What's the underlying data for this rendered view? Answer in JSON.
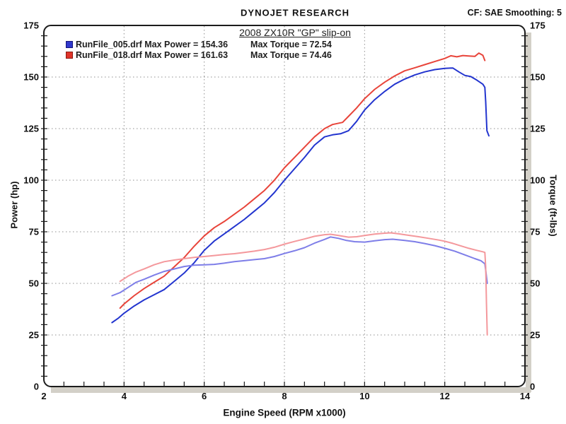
{
  "header": {
    "brand": "DYNOJET RESEARCH",
    "settings": "CF: SAE  Smoothing: 5"
  },
  "title": "2008 ZX10R \"GP\" slip-on",
  "legend": [
    {
      "label": "RunFile_005.drf Max Power = 154.36",
      "torque": "Max Torque = 72.54",
      "swatch": "#3038cc",
      "swatch_border": "#15157a"
    },
    {
      "label": "RunFile_018.drf Max Power = 161.63",
      "torque": "Max Torque = 74.46",
      "swatch": "#e0342a",
      "swatch_border": "#8a1a10"
    }
  ],
  "axes": {
    "left_label": "Power (hp)",
    "right_label": "Torque (ft-lbs)",
    "bottom_label": "Engine Speed (RPM x1000)"
  },
  "chart_data": {
    "type": "line",
    "title": "2008 ZX10R \"GP\" slip-on",
    "xlabel": "Engine Speed (RPM x1000)",
    "ylabel": "Power (hp)",
    "ylabel_right": "Torque (ft-lbs)",
    "xlim": [
      2,
      14
    ],
    "ylim": [
      0,
      175
    ],
    "x_major_ticks": [
      2,
      4,
      6,
      8,
      10,
      12,
      14
    ],
    "x_minor_step": 0.5,
    "y_major_ticks": [
      0,
      25,
      50,
      75,
      100,
      125,
      150,
      175
    ],
    "y_minor_step": 5,
    "grid_x": [
      4,
      6,
      8,
      10,
      12
    ],
    "grid_y": [
      25,
      50,
      75,
      100,
      125,
      150
    ],
    "legend_position": "top-left",
    "series": [
      {
        "name": "RunFile_005.drf Power",
        "unit": "hp",
        "color": "#2335cf",
        "max": 154.36,
        "points": [
          [
            3.7,
            31
          ],
          [
            3.85,
            33
          ],
          [
            4,
            35.5
          ],
          [
            4.25,
            39
          ],
          [
            4.5,
            42
          ],
          [
            4.75,
            44.5
          ],
          [
            5,
            47
          ],
          [
            5.25,
            51
          ],
          [
            5.5,
            55
          ],
          [
            5.75,
            60
          ],
          [
            6,
            66
          ],
          [
            6.25,
            70.5
          ],
          [
            6.5,
            74
          ],
          [
            6.75,
            77.5
          ],
          [
            7,
            81
          ],
          [
            7.25,
            85
          ],
          [
            7.5,
            89
          ],
          [
            7.75,
            94
          ],
          [
            8,
            100
          ],
          [
            8.25,
            105.5
          ],
          [
            8.5,
            111
          ],
          [
            8.75,
            117
          ],
          [
            9,
            121
          ],
          [
            9.2,
            122
          ],
          [
            9.4,
            122.5
          ],
          [
            9.6,
            124
          ],
          [
            9.8,
            128.5
          ],
          [
            10,
            134
          ],
          [
            10.25,
            139
          ],
          [
            10.5,
            143
          ],
          [
            10.75,
            146.5
          ],
          [
            11,
            149
          ],
          [
            11.25,
            151
          ],
          [
            11.5,
            152.5
          ],
          [
            11.75,
            153.6
          ],
          [
            12,
            154.2
          ],
          [
            12.2,
            154.4
          ],
          [
            12.35,
            152.5
          ],
          [
            12.5,
            150.8
          ],
          [
            12.65,
            150.2
          ],
          [
            12.8,
            148.5
          ],
          [
            12.95,
            146.5
          ],
          [
            13,
            145
          ],
          [
            13.02,
            138
          ],
          [
            13.05,
            124
          ],
          [
            13.1,
            121.5
          ]
        ]
      },
      {
        "name": "RunFile_018.drf Power",
        "unit": "hp",
        "color": "#e8443a",
        "max": 161.63,
        "drop": {
          "x": 13.01,
          "from": 158,
          "to": 27,
          "gradient": [
            "#e8443a",
            "#ea6636",
            "#f29554",
            "#f6adad",
            "#f8bfc8"
          ]
        },
        "points": [
          [
            3.9,
            38
          ],
          [
            4,
            40
          ],
          [
            4.25,
            44
          ],
          [
            4.5,
            47.5
          ],
          [
            4.75,
            50.5
          ],
          [
            5,
            53.5
          ],
          [
            5.25,
            58
          ],
          [
            5.5,
            62.5
          ],
          [
            5.75,
            68
          ],
          [
            6,
            73
          ],
          [
            6.25,
            77
          ],
          [
            6.5,
            80
          ],
          [
            6.75,
            83.5
          ],
          [
            7,
            87
          ],
          [
            7.25,
            91
          ],
          [
            7.5,
            95
          ],
          [
            7.75,
            100
          ],
          [
            8,
            106
          ],
          [
            8.25,
            111
          ],
          [
            8.5,
            116
          ],
          [
            8.75,
            121
          ],
          [
            9,
            125
          ],
          [
            9.2,
            127
          ],
          [
            9.45,
            128
          ],
          [
            9.6,
            131
          ],
          [
            9.8,
            135
          ],
          [
            10,
            139.5
          ],
          [
            10.25,
            144
          ],
          [
            10.5,
            147.5
          ],
          [
            10.75,
            150.5
          ],
          [
            11,
            153
          ],
          [
            11.25,
            154.5
          ],
          [
            11.5,
            156
          ],
          [
            11.75,
            157.5
          ],
          [
            12,
            159
          ],
          [
            12.15,
            160.3
          ],
          [
            12.3,
            159.8
          ],
          [
            12.45,
            160.4
          ],
          [
            12.6,
            160.2
          ],
          [
            12.75,
            160
          ],
          [
            12.85,
            161.6
          ],
          [
            12.95,
            160.5
          ],
          [
            13,
            158
          ]
        ]
      },
      {
        "name": "RunFile_005.drf Torque",
        "unit": "ft-lbs",
        "color": "#7e7ee8",
        "max": 72.54,
        "points": [
          [
            3.7,
            44
          ],
          [
            3.9,
            45.5
          ],
          [
            4.1,
            48
          ],
          [
            4.3,
            50.5
          ],
          [
            4.5,
            52
          ],
          [
            4.75,
            54
          ],
          [
            5,
            55.8
          ],
          [
            5.25,
            57
          ],
          [
            5.5,
            58.2
          ],
          [
            5.75,
            58.8
          ],
          [
            6,
            59
          ],
          [
            6.25,
            59.2
          ],
          [
            6.5,
            59.8
          ],
          [
            6.75,
            60.5
          ],
          [
            7,
            61
          ],
          [
            7.25,
            61.5
          ],
          [
            7.5,
            62
          ],
          [
            7.75,
            63
          ],
          [
            8,
            64.5
          ],
          [
            8.25,
            65.8
          ],
          [
            8.5,
            67.3
          ],
          [
            8.75,
            69.5
          ],
          [
            9,
            71.3
          ],
          [
            9.15,
            72.5
          ],
          [
            9.35,
            71.8
          ],
          [
            9.55,
            70.8
          ],
          [
            9.75,
            70.2
          ],
          [
            10,
            70
          ],
          [
            10.25,
            70.6
          ],
          [
            10.5,
            71.2
          ],
          [
            10.7,
            71.4
          ],
          [
            11,
            70.8
          ],
          [
            11.25,
            70.2
          ],
          [
            11.5,
            69.3
          ],
          [
            11.75,
            68.3
          ],
          [
            12,
            67
          ],
          [
            12.25,
            65.6
          ],
          [
            12.5,
            63.8
          ],
          [
            12.75,
            62
          ],
          [
            12.9,
            61
          ],
          [
            13,
            59.5
          ],
          [
            13.03,
            55
          ],
          [
            13.06,
            50
          ]
        ]
      },
      {
        "name": "RunFile_018.drf Torque",
        "unit": "ft-lbs",
        "color": "#f4989c",
        "max": 74.46,
        "points": [
          [
            3.9,
            51
          ],
          [
            4.1,
            53.5
          ],
          [
            4.3,
            55.5
          ],
          [
            4.5,
            57
          ],
          [
            4.75,
            59
          ],
          [
            5,
            60.5
          ],
          [
            5.25,
            61.3
          ],
          [
            5.5,
            62
          ],
          [
            5.75,
            62.6
          ],
          [
            6,
            63
          ],
          [
            6.25,
            63.5
          ],
          [
            6.5,
            64
          ],
          [
            6.75,
            64.4
          ],
          [
            7,
            65
          ],
          [
            7.25,
            65.6
          ],
          [
            7.5,
            66.4
          ],
          [
            7.75,
            67.5
          ],
          [
            8,
            69
          ],
          [
            8.25,
            70.3
          ],
          [
            8.5,
            71.5
          ],
          [
            8.75,
            72.8
          ],
          [
            9,
            73.6
          ],
          [
            9.15,
            73.8
          ],
          [
            9.35,
            73.2
          ],
          [
            9.6,
            72.4
          ],
          [
            9.8,
            72.6
          ],
          [
            10,
            73.2
          ],
          [
            10.25,
            73.9
          ],
          [
            10.5,
            74.3
          ],
          [
            10.65,
            74.5
          ],
          [
            10.85,
            74
          ],
          [
            11.1,
            73.3
          ],
          [
            11.35,
            72.6
          ],
          [
            11.6,
            71.8
          ],
          [
            11.85,
            71
          ],
          [
            12,
            70.4
          ],
          [
            12.2,
            69.4
          ],
          [
            12.4,
            68.2
          ],
          [
            12.6,
            67
          ],
          [
            12.8,
            66
          ],
          [
            12.95,
            65.3
          ],
          [
            13,
            65
          ],
          [
            13.02,
            58
          ],
          [
            13.04,
            40
          ],
          [
            13.06,
            25
          ]
        ]
      }
    ]
  }
}
